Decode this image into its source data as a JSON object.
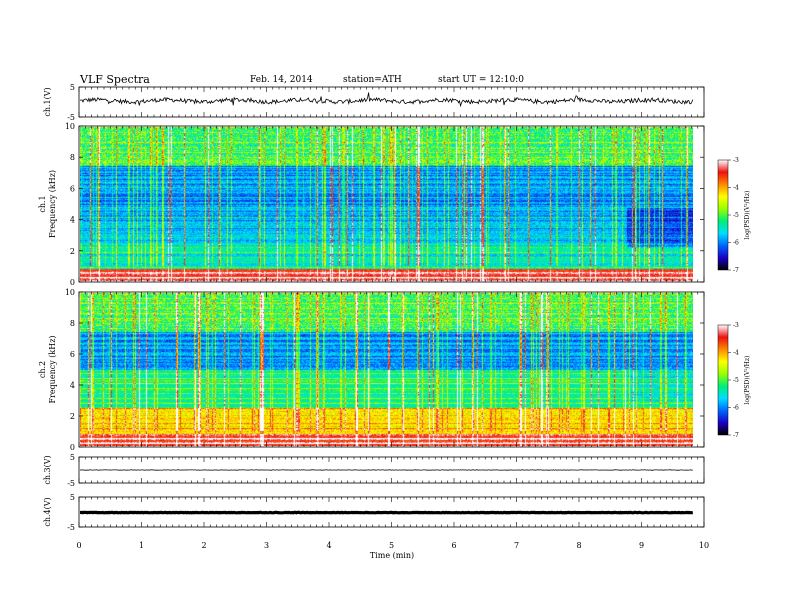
{
  "header": {
    "title": "VLF  Spectra",
    "date": "Feb. 14, 2014",
    "station": "station=ATH",
    "start": "start  UT  =   12:10:0"
  },
  "chart_data": {
    "type": "heatmap",
    "x_axis": {
      "label": "Time  (min)",
      "range": [
        0,
        10
      ],
      "ticks": [
        "0",
        "1",
        "2",
        "3",
        "4",
        "5",
        "6",
        "7",
        "8",
        "9",
        "10"
      ]
    },
    "panels": [
      {
        "id": "ch1-waveform",
        "kind": "waveform",
        "ylabel": "ch.1(V)",
        "yticks": [
          "5",
          "-5"
        ],
        "ylim": [
          -5,
          5
        ],
        "trace_level": 0.4
      },
      {
        "id": "ch1-spectrogram",
        "kind": "spectrogram",
        "ylabel": "ch.1\nFrequency  (kHz)",
        "ylabel_lines": [
          "ch.1",
          "Frequency  (kHz)"
        ],
        "yticks": [
          "10",
          "8",
          "6",
          "4",
          "2",
          "0"
        ],
        "ylim": [
          0,
          10
        ],
        "data_end_min": 9.82,
        "quiet_change_min": 8.75
      },
      {
        "id": "ch2-spectrogram",
        "kind": "spectrogram",
        "ylabel_lines": [
          "ch.2",
          "Frequency  (kHz)"
        ],
        "yticks": [
          "10",
          "8",
          "6",
          "4",
          "2",
          "0"
        ],
        "ylim": [
          0,
          10
        ],
        "data_end_min": 9.82,
        "quiet_change_min": 8.75
      },
      {
        "id": "ch3-waveform",
        "kind": "waveform",
        "ylabel": "ch.3(V)",
        "yticks": [
          "5",
          "-5"
        ],
        "ylim": [
          -5,
          5
        ],
        "trace_level": 0.0
      },
      {
        "id": "ch4-waveform",
        "kind": "waveform",
        "ylabel": "ch.4(V)",
        "yticks": [
          "5",
          "-5"
        ],
        "ylim": [
          -5,
          5
        ],
        "trace_level": -0.2
      }
    ],
    "colorbar": {
      "label": "log(PSD)(V²/Hz)",
      "ticks": [
        "-3",
        "-4",
        "-5",
        "-6",
        "-7"
      ],
      "range": [
        -7,
        -3
      ],
      "colors": [
        "#000000",
        "#1a00c8",
        "#0066ff",
        "#00ddff",
        "#00ee77",
        "#99ff00",
        "#ffff00",
        "#ff8800",
        "#ee1111",
        "#ffffff"
      ]
    }
  }
}
